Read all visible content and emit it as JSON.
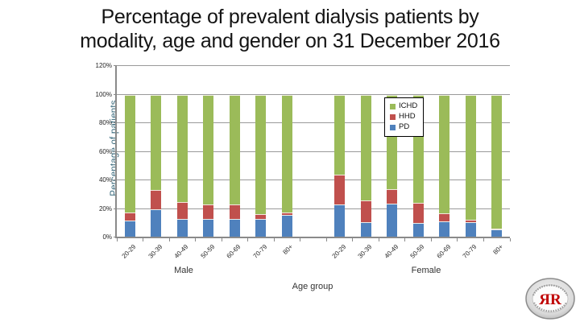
{
  "slide": {
    "title_lines": [
      "Percentage of prevalent dialysis patients by",
      "modality, age and gender on 31 December 2016"
    ]
  },
  "chart_data": {
    "type": "bar",
    "stacked": true,
    "title": "Percentage of prevalent dialysis patients by modality, age and gender on 31 December 2016",
    "ylabel": "Percentage of patients",
    "xlabel": "Age group",
    "ylim": [
      0,
      120
    ],
    "ytick_step": 20,
    "ytick_labels": [
      "0%",
      "20%",
      "40%",
      "60%",
      "80%",
      "100%",
      "120%"
    ],
    "grid": true,
    "legend_position": "inside-top",
    "groups": [
      {
        "label": "Male",
        "categories": [
          "20-29",
          "30-39",
          "40-49",
          "50-59",
          "60-69",
          "70-79",
          "80+"
        ]
      },
      {
        "label": "Female",
        "categories": [
          "20-29",
          "30-39",
          "40-49",
          "50-59",
          "60-69",
          "70-79",
          "80+"
        ]
      }
    ],
    "series": [
      {
        "name": "ICHD",
        "color": "#9BBB59",
        "values": {
          "Male": [
            82.5,
            66.5,
            75,
            77,
            77,
            83.5,
            82.5
          ],
          "Female": [
            56,
            74,
            66,
            75.5,
            83,
            87.5,
            94
          ]
        }
      },
      {
        "name": "HHD",
        "color": "#C0504D",
        "values": {
          "Male": [
            5.5,
            14,
            12,
            10,
            10,
            3.5,
            2
          ],
          "Female": [
            21,
            15.5,
            10.5,
            14.5,
            5.5,
            2,
            0.5
          ]
        }
      },
      {
        "name": "PD",
        "color": "#4F81BD",
        "values": {
          "Male": [
            12,
            19.5,
            13,
            13,
            13,
            13,
            15.5
          ],
          "Female": [
            23,
            10.5,
            23.5,
            10,
            11.5,
            10.5,
            5.5
          ]
        }
      }
    ],
    "stack_order_bottom_to_top": [
      "PD",
      "HHD",
      "ICHD"
    ]
  },
  "logo": {
    "monogram": "ЯR",
    "color": "#C00000"
  },
  "style": {
    "grid_color": "#9a9a9a",
    "axis_color": "#8a8a8a",
    "tick_label_color": "#262626",
    "ylabel_color": "#35677A",
    "title_color": "#141414"
  }
}
